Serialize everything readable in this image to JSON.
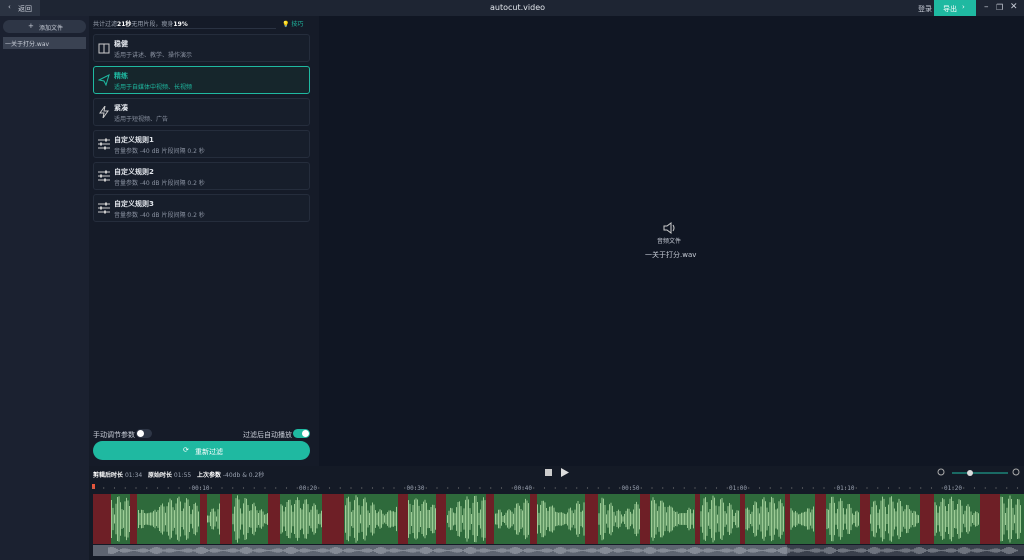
{
  "topbar": {
    "back": "返回",
    "title": "autocut.video",
    "login": "登录",
    "export": "导出"
  },
  "sidebar": {
    "add_file": "添加文件",
    "files": [
      "一关于打分.wav"
    ]
  },
  "summary": {
    "prefix": "共计过滤",
    "seconds": "21秒",
    "middle": "无用片段，瘦身",
    "percent": "19%",
    "tips": "技巧"
  },
  "presets": [
    {
      "name": "稳健",
      "desc": "适用于讲述、教学、操作演示"
    },
    {
      "name": "精练",
      "desc": "适用于自媒体中视频、长视频"
    },
    {
      "name": "紧凑",
      "desc": "适用于短视频、广告"
    },
    {
      "name": "自定义规则1",
      "desc": "音量参数 -40 dB 片段间隔 0.2 秒"
    },
    {
      "name": "自定义规则2",
      "desc": "音量参数 -40 dB 片段间隔 0.2 秒"
    },
    {
      "name": "自定义规则3",
      "desc": "音量参数 -40 dB 片段间隔 0.2 秒"
    }
  ],
  "controls": {
    "manual": "手动调节参数",
    "autoplay": "过滤后自动播放",
    "refilter": "重新过滤"
  },
  "preview": {
    "label": "音频文件",
    "file": "一关于打分.wav"
  },
  "timeline": {
    "edited_label": "剪辑后时长",
    "edited": "01:34",
    "original_label": "原始时长",
    "original": "01:55",
    "last_label": "上次参数",
    "last": "-40db & 0.2秒",
    "ticks": [
      "00:10",
      "00:20",
      "00:30",
      "00:40",
      "00:50",
      "01:00",
      "01:10",
      "01:20"
    ]
  }
}
